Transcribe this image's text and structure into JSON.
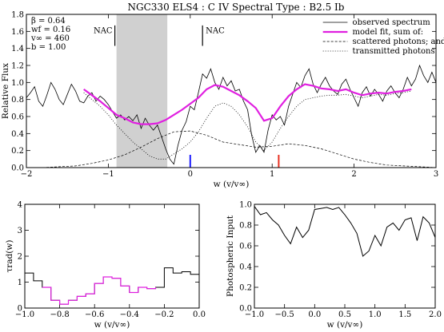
{
  "chart_data": [
    {
      "type": "line",
      "title": "NGC330 ELS4 : C IV     Spectral Type : B2.5 Ib",
      "xlabel": "w (v/v∞)",
      "ylabel": "Relative Flux",
      "xlim": [
        -2,
        3
      ],
      "ylim": [
        0,
        1.8
      ],
      "xticks": [
        -2,
        -1,
        0,
        1,
        2,
        3
      ],
      "yticks": [
        0,
        0.2,
        0.4,
        0.6,
        0.8,
        1.0,
        1.2,
        1.4,
        1.6,
        1.8
      ],
      "params": [
        "β  =  0.64",
        "wf =  0.16",
        "v∞ =  460",
        "b  =  1.00"
      ],
      "nac_labels": [
        {
          "text": "NAC",
          "x": -0.92
        },
        {
          "text": "NAC",
          "x": 0.15
        }
      ],
      "shaded_region": [
        -0.9,
        -0.28
      ],
      "markers": [
        {
          "x": 0.0,
          "color": "#1a1aff"
        },
        {
          "x": 1.08,
          "color": "#e83020"
        }
      ],
      "legend": {
        "placement": "top-right",
        "entries": [
          "observed spectrum",
          "model fit, sum of:",
          "scattered photons; and",
          "transmitted photons"
        ]
      },
      "series": [
        {
          "name": "observed spectrum",
          "color": "#000000",
          "x": [
            -2.0,
            -1.95,
            -1.9,
            -1.85,
            -1.8,
            -1.75,
            -1.7,
            -1.65,
            -1.6,
            -1.55,
            -1.5,
            -1.45,
            -1.4,
            -1.35,
            -1.3,
            -1.25,
            -1.2,
            -1.15,
            -1.1,
            -1.05,
            -1.0,
            -0.95,
            -0.9,
            -0.85,
            -0.8,
            -0.75,
            -0.7,
            -0.65,
            -0.6,
            -0.55,
            -0.5,
            -0.45,
            -0.4,
            -0.35,
            -0.3,
            -0.25,
            -0.2,
            -0.15,
            -0.1,
            -0.05,
            0.0,
            0.05,
            0.1,
            0.15,
            0.2,
            0.25,
            0.3,
            0.35,
            0.4,
            0.45,
            0.5,
            0.55,
            0.6,
            0.65,
            0.7,
            0.75,
            0.8,
            0.85,
            0.9,
            0.95,
            1.0,
            1.05,
            1.1,
            1.15,
            1.2,
            1.25,
            1.3,
            1.35,
            1.4,
            1.45,
            1.5,
            1.55,
            1.6,
            1.65,
            1.7,
            1.75,
            1.8,
            1.85,
            1.9,
            1.95,
            2.0,
            2.05,
            2.1,
            2.15,
            2.2,
            2.25,
            2.3,
            2.35,
            2.4,
            2.45,
            2.5,
            2.55,
            2.6,
            2.65,
            2.7,
            2.75,
            2.8,
            2.85,
            2.9,
            2.95,
            3.0
          ],
          "y": [
            0.82,
            0.88,
            0.95,
            0.78,
            0.72,
            0.85,
            1.0,
            0.92,
            0.8,
            0.74,
            0.86,
            0.98,
            0.9,
            0.78,
            0.76,
            0.84,
            0.88,
            0.78,
            0.84,
            0.8,
            0.74,
            0.66,
            0.58,
            0.62,
            0.56,
            0.6,
            0.55,
            0.62,
            0.46,
            0.58,
            0.5,
            0.44,
            0.5,
            0.36,
            0.22,
            0.1,
            0.04,
            0.26,
            0.44,
            0.54,
            0.72,
            0.68,
            0.88,
            1.1,
            1.05,
            1.16,
            1.0,
            0.92,
            1.06,
            0.96,
            1.02,
            0.9,
            0.92,
            0.78,
            0.68,
            0.38,
            0.18,
            0.26,
            0.18,
            0.44,
            0.62,
            0.56,
            0.6,
            0.5,
            0.72,
            0.86,
            1.0,
            0.94,
            1.08,
            1.16,
            0.98,
            0.88,
            0.98,
            1.06,
            0.96,
            0.9,
            0.86,
            0.98,
            1.04,
            0.92,
            0.82,
            0.72,
            0.88,
            0.95,
            0.84,
            0.92,
            0.86,
            0.78,
            0.9,
            0.96,
            0.88,
            0.82,
            0.92,
            1.06,
            0.96,
            1.04,
            1.2,
            1.08,
            1.0,
            1.12,
            1.0
          ]
        },
        {
          "name": "model fit, sum of:",
          "color": "#e020e0",
          "x": [
            -1.3,
            -1.2,
            -1.1,
            -1.0,
            -0.9,
            -0.8,
            -0.7,
            -0.6,
            -0.5,
            -0.4,
            -0.3,
            -0.2,
            -0.1,
            0.0,
            0.1,
            0.2,
            0.3,
            0.4,
            0.5,
            0.6,
            0.7,
            0.8,
            0.9,
            1.0,
            1.1,
            1.2,
            1.3,
            1.4,
            1.5,
            1.6,
            1.7,
            1.8,
            1.9,
            2.0,
            2.1,
            2.2,
            2.3,
            2.4,
            2.5,
            2.6,
            2.7
          ],
          "y": [
            0.92,
            0.85,
            0.78,
            0.7,
            0.62,
            0.58,
            0.53,
            0.51,
            0.51,
            0.52,
            0.56,
            0.62,
            0.68,
            0.75,
            0.82,
            0.92,
            0.97,
            0.95,
            0.9,
            0.85,
            0.78,
            0.7,
            0.55,
            0.58,
            0.72,
            0.84,
            0.92,
            0.98,
            0.96,
            0.93,
            0.92,
            0.9,
            0.92,
            0.88,
            0.85,
            0.87,
            0.88,
            0.87,
            0.89,
            0.9,
            0.92
          ]
        },
        {
          "name": "scattered photons; and",
          "color": "#000000",
          "x": [
            -2.0,
            -1.8,
            -1.6,
            -1.4,
            -1.2,
            -1.0,
            -0.8,
            -0.6,
            -0.4,
            -0.2,
            0.0,
            0.2,
            0.4,
            0.6,
            0.8,
            1.0,
            1.2,
            1.4,
            1.6,
            1.8,
            2.0,
            2.2,
            2.4,
            2.6,
            2.8,
            3.0
          ],
          "y": [
            0.0,
            0.0,
            0.01,
            0.02,
            0.05,
            0.09,
            0.15,
            0.24,
            0.34,
            0.42,
            0.43,
            0.38,
            0.3,
            0.27,
            0.24,
            0.25,
            0.28,
            0.26,
            0.22,
            0.16,
            0.1,
            0.06,
            0.03,
            0.02,
            0.01,
            0.0
          ]
        },
        {
          "name": "transmitted photons",
          "color": "#000000",
          "x": [
            -1.3,
            -1.2,
            -1.1,
            -1.0,
            -0.9,
            -0.8,
            -0.7,
            -0.6,
            -0.5,
            -0.4,
            -0.3,
            -0.2,
            -0.1,
            0.0,
            0.1,
            0.2,
            0.3,
            0.4,
            0.5,
            0.6,
            0.7,
            0.8,
            0.9,
            1.0,
            1.1,
            1.2,
            1.3,
            1.4,
            1.5,
            1.6,
            1.7,
            1.8,
            1.9,
            2.0,
            2.1,
            2.2,
            2.3,
            2.4,
            2.5,
            2.6,
            2.7
          ],
          "y": [
            0.88,
            0.8,
            0.72,
            0.62,
            0.5,
            0.4,
            0.3,
            0.22,
            0.14,
            0.1,
            0.1,
            0.16,
            0.22,
            0.3,
            0.42,
            0.58,
            0.72,
            0.76,
            0.72,
            0.62,
            0.48,
            0.3,
            0.2,
            0.3,
            0.46,
            0.6,
            0.72,
            0.8,
            0.82,
            0.84,
            0.85,
            0.85,
            0.86,
            0.84,
            0.82,
            0.84,
            0.86,
            0.85,
            0.87,
            0.88,
            0.9
          ]
        }
      ]
    },
    {
      "type": "line",
      "title": "",
      "xlabel": "w (v/v∞)",
      "ylabel": "τrad(w)",
      "xlim": [
        -1.0,
        0.0
      ],
      "ylim": [
        0,
        4
      ],
      "xticks": [
        -1.0,
        -0.8,
        -0.6,
        -0.4,
        -0.2,
        0.0
      ],
      "yticks": [
        0,
        1,
        2,
        3,
        4
      ],
      "series": [
        {
          "name": "",
          "color": "#000000",
          "x": [
            -1.0,
            -0.95,
            -0.9,
            -0.85,
            -0.8,
            -0.75,
            -0.7,
            -0.65,
            -0.6,
            -0.55,
            -0.5,
            -0.45,
            -0.4,
            -0.35,
            -0.3,
            -0.25,
            -0.2,
            -0.15,
            -0.1,
            -0.05,
            0.0
          ],
          "y": [
            1.35,
            1.05,
            0.8,
            0.3,
            0.15,
            0.3,
            0.45,
            0.55,
            0.95,
            1.2,
            1.15,
            0.85,
            0.6,
            0.8,
            0.75,
            0.8,
            1.55,
            1.35,
            1.4,
            1.3,
            1.45
          ]
        }
      ],
      "highlight": {
        "range": [
          -0.9,
          -0.28
        ],
        "color": "#e020e0"
      }
    },
    {
      "type": "line",
      "title": "",
      "xlabel": "w (v/v∞)",
      "ylabel": "Photospheric Input",
      "xlim": [
        -1.0,
        2.0
      ],
      "ylim": [
        0,
        1.0
      ],
      "xticks": [
        -1.0,
        -0.5,
        0.0,
        0.5,
        1.0,
        1.5,
        2.0
      ],
      "yticks": [
        0,
        0.2,
        0.4,
        0.6,
        0.8,
        1.0
      ],
      "series": [
        {
          "name": "",
          "color": "#000000",
          "x": [
            -1.0,
            -0.9,
            -0.8,
            -0.7,
            -0.6,
            -0.5,
            -0.4,
            -0.3,
            -0.2,
            -0.1,
            0.0,
            0.1,
            0.2,
            0.3,
            0.4,
            0.5,
            0.6,
            0.7,
            0.8,
            0.9,
            1.0,
            1.1,
            1.2,
            1.3,
            1.4,
            1.5,
            1.6,
            1.7,
            1.8,
            1.9,
            2.0
          ],
          "y": [
            0.98,
            0.9,
            0.92,
            0.85,
            0.8,
            0.7,
            0.62,
            0.78,
            0.68,
            0.75,
            0.95,
            0.96,
            0.97,
            0.95,
            0.97,
            0.9,
            0.82,
            0.72,
            0.5,
            0.55,
            0.7,
            0.6,
            0.78,
            0.82,
            0.75,
            0.85,
            0.87,
            0.65,
            0.88,
            0.82,
            0.68
          ]
        }
      ]
    }
  ]
}
